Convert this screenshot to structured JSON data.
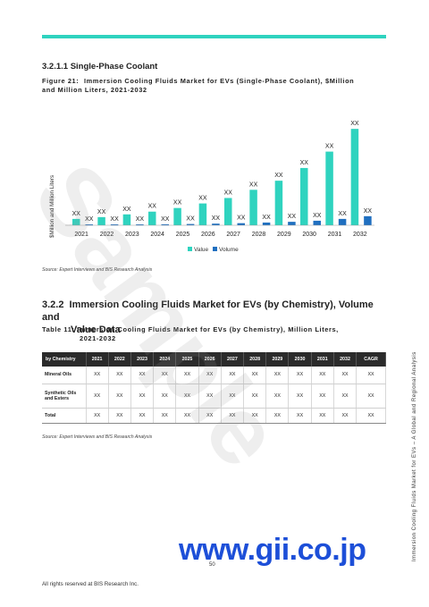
{
  "section": {
    "heading": "3.2.1.1 Single-Phase Coolant"
  },
  "figure": {
    "label": "Figure 21:",
    "caption_line1": "Immersion Cooling Fluids Market for EVs (Single-Phase Coolant), $Million",
    "caption_line2": "and Million Liters, 2021-2032"
  },
  "chart_data": {
    "type": "bar",
    "categories": [
      "2021",
      "2022",
      "2023",
      "2024",
      "2025",
      "2026",
      "2027",
      "2028",
      "2029",
      "2030",
      "2031",
      "2032"
    ],
    "series": [
      {
        "name": "Value",
        "color": "#2fd3bf",
        "values": [
          7,
          9,
          12,
          15,
          19,
          24,
          30,
          39,
          49,
          63,
          81,
          106
        ],
        "labels": [
          "XX",
          "XX",
          "XX",
          "XX",
          "XX",
          "XX",
          "XX",
          "XX",
          "XX",
          "XX",
          "XX",
          "XX"
        ]
      },
      {
        "name": "Volume",
        "color": "#1f6fc0",
        "values": [
          0.5,
          0.7,
          0.9,
          1.1,
          1.4,
          1.8,
          2.3,
          3,
          3.8,
          5,
          7,
          10
        ],
        "labels": [
          "XX",
          "XX",
          "XX",
          "XX",
          "XX",
          "XX",
          "XX",
          "XX",
          "XX",
          "XX",
          "XX",
          "XX"
        ]
      }
    ],
    "ylabel": "$Million and Million Liters",
    "ylim": [
      0,
      115
    ],
    "legend_position": "bottom-center",
    "grid": false
  },
  "source1": "Source: Expert Interviews and BIS Research Analysis",
  "section2": {
    "number": "3.2.2",
    "title_line1": "Immersion Cooling Fluids Market for EVs (by Chemistry), Volume and",
    "title_line2": "Value Data"
  },
  "table_caption": {
    "line1": "Table 11: Immersion Cooling Fluids Market for EVs (by Chemistry), Million Liters,",
    "line2": "2021-2032"
  },
  "table": {
    "headers": [
      "by Chemistry",
      "2021",
      "2022",
      "2023",
      "2024",
      "2025",
      "2026",
      "2027",
      "2028",
      "2029",
      "2030",
      "2031",
      "2032",
      "CAGR"
    ],
    "rows": [
      {
        "label": "Mineral Oils",
        "cells": [
          "XX",
          "XX",
          "XX",
          "XX",
          "XX",
          "XX",
          "XX",
          "XX",
          "XX",
          "XX",
          "XX",
          "XX",
          "XX"
        ]
      },
      {
        "label": "Synthetic Oils and Esters",
        "cells": [
          "XX",
          "XX",
          "XX",
          "XX",
          "XX",
          "XX",
          "XX",
          "XX",
          "XX",
          "XX",
          "XX",
          "XX",
          "XX"
        ]
      },
      {
        "label": "Total",
        "cells": [
          "XX",
          "XX",
          "XX",
          "XX",
          "XX",
          "XX",
          "XX",
          "XX",
          "XX",
          "XX",
          "XX",
          "XX",
          "XX"
        ]
      }
    ]
  },
  "source2": "Source: Expert Interviews and BIS Research Analysis",
  "watermark": "Sample",
  "footer": {
    "url": "www.gii.co.jp",
    "page_number": "50",
    "copyright": "All rights reserved at BIS Research Inc.",
    "side_text": "Immersion Cooling Fluids Market for EVs – A Global and Regional Analysis"
  },
  "colors": {
    "accent": "#2fd3bf",
    "volume_bar": "#1f6fc0",
    "header_bg": "#2b2b2b",
    "url_blue": "#1d4fd8"
  }
}
